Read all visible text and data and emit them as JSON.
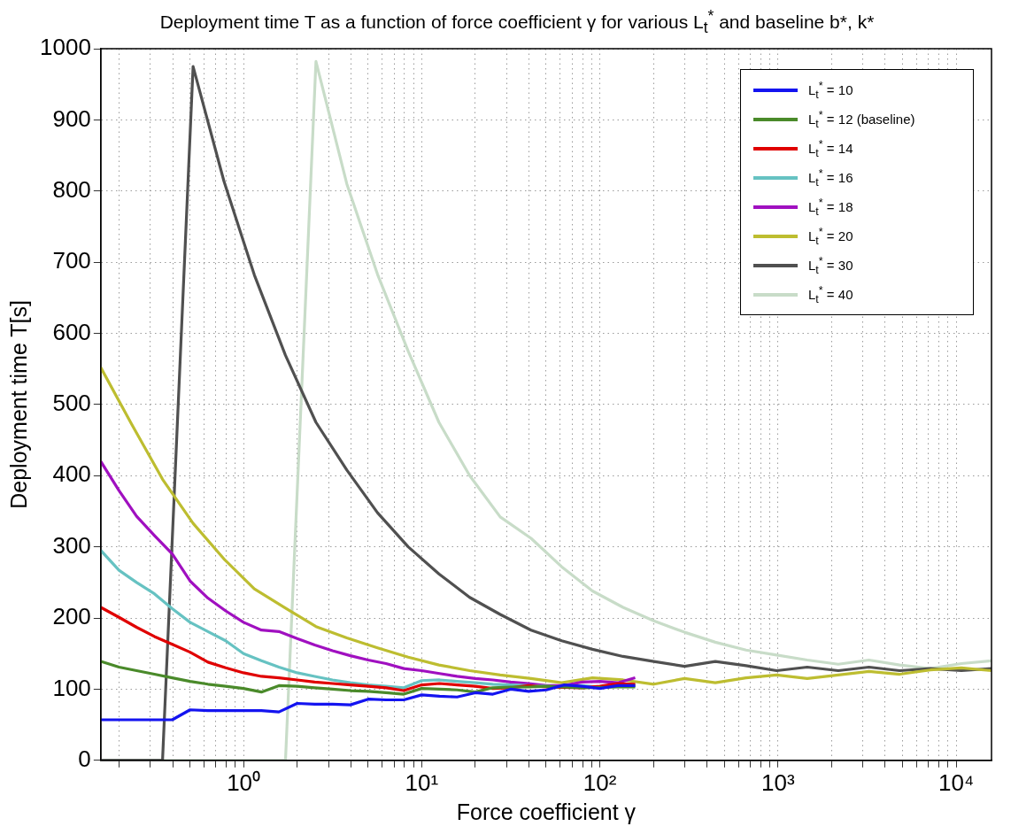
{
  "chart_data": {
    "type": "line",
    "title": "Deployment time T as a function of force coefficient γ for various L$_{t}$$^{*}$ and baseline b*, k*",
    "xlabel": "Force coefficient γ",
    "ylabel": "Deployment time T[s]",
    "log": "x",
    "grid": true,
    "legend": "top right",
    "xlim": [
      0.158,
      15800
    ],
    "ylim": [
      0,
      1000
    ],
    "yticks": [
      0,
      100,
      200,
      300,
      400,
      500,
      600,
      700,
      800,
      900,
      1000
    ],
    "xticks": [
      {
        "value": 0.2,
        "label": null
      },
      {
        "value": 0.3,
        "label": null
      },
      {
        "value": 0.4,
        "label": null
      },
      {
        "value": 0.5,
        "label": null
      },
      {
        "value": 0.6,
        "label": null
      },
      {
        "value": 0.7,
        "label": null
      },
      {
        "value": 0.8,
        "label": null
      },
      {
        "value": 0.9,
        "label": null
      },
      {
        "value": 1,
        "label": "10⁰"
      },
      {
        "value": 2,
        "label": null
      },
      {
        "value": 3,
        "label": null
      },
      {
        "value": 4,
        "label": null
      },
      {
        "value": 5,
        "label": null
      },
      {
        "value": 6,
        "label": null
      },
      {
        "value": 7,
        "label": null
      },
      {
        "value": 8,
        "label": null
      },
      {
        "value": 9,
        "label": null
      },
      {
        "value": 10,
        "label": "10¹"
      },
      {
        "value": 20,
        "label": null
      },
      {
        "value": 30,
        "label": null
      },
      {
        "value": 40,
        "label": null
      },
      {
        "value": 50,
        "label": null
      },
      {
        "value": 60,
        "label": null
      },
      {
        "value": 70,
        "label": null
      },
      {
        "value": 80,
        "label": null
      },
      {
        "value": 90,
        "label": null
      },
      {
        "value": 100,
        "label": "10²"
      },
      {
        "value": 200,
        "label": null
      },
      {
        "value": 300,
        "label": null
      },
      {
        "value": 400,
        "label": null
      },
      {
        "value": 500,
        "label": null
      },
      {
        "value": 600,
        "label": null
      },
      {
        "value": 700,
        "label": null
      },
      {
        "value": 800,
        "label": null
      },
      {
        "value": 900,
        "label": null
      },
      {
        "value": 1000,
        "label": "10³"
      },
      {
        "value": 2000,
        "label": null
      },
      {
        "value": 3000,
        "label": null
      },
      {
        "value": 4000,
        "label": null
      },
      {
        "value": 5000,
        "label": null
      },
      {
        "value": 6000,
        "label": null
      },
      {
        "value": 7000,
        "label": null
      },
      {
        "value": 8000,
        "label": null
      },
      {
        "value": 9000,
        "label": null
      },
      {
        "value": 10000,
        "label": "10⁴"
      }
    ],
    "series": [
      {
        "name": "L$_{t}$$^{*}$ = 10",
        "color": "#1414f0",
        "x": [
          0.158,
          0.2,
          0.251,
          0.316,
          0.398,
          0.501,
          0.631,
          0.794,
          1,
          1.26,
          1.58,
          2,
          2.51,
          3.16,
          3.98,
          5.01,
          6.31,
          7.94,
          10,
          12.6,
          15.8,
          20,
          25.1,
          31.6,
          39.8,
          50.1,
          63.1,
          79.4,
          100,
          126,
          158
        ],
        "values": [
          57,
          57,
          57,
          57,
          57,
          71,
          70,
          70,
          70,
          70,
          68,
          80,
          79,
          79,
          78,
          86,
          85,
          85,
          92,
          90,
          89,
          95,
          93,
          100,
          97,
          99,
          106,
          104,
          101,
          105,
          105
        ]
      },
      {
        "name": "L$_{t}$$^{*}$ = 12 (baseline)",
        "color": "#4a8a2a",
        "x": [
          0.158,
          0.2,
          0.251,
          0.316,
          0.398,
          0.501,
          0.631,
          0.794,
          1,
          1.26,
          1.58,
          2,
          2.51,
          3.16,
          3.98,
          5.01,
          6.31,
          7.94,
          10,
          12.6,
          15.8,
          20,
          25.1,
          31.6,
          39.8,
          50.1,
          63.1,
          79.4,
          100,
          126,
          158
        ],
        "values": [
          139,
          131,
          126,
          121,
          116,
          111,
          107,
          104,
          101,
          96,
          105,
          104,
          102,
          100,
          98,
          97,
          95,
          93,
          101,
          100,
          99,
          96,
          102,
          103,
          103,
          104,
          103,
          102,
          null,
          103,
          103
        ]
      },
      {
        "name": "L$_{t}$$^{*}$ = 14",
        "color": "#e00000",
        "x": [
          0.158,
          0.2,
          0.251,
          0.316,
          0.398,
          0.501,
          0.631,
          0.794,
          1,
          1.26,
          1.58,
          2,
          2.51,
          3.16,
          3.98,
          5.01,
          6.31,
          7.94,
          10,
          12.6,
          15.8,
          20,
          25.1,
          31.6,
          39.8,
          50.1,
          63.1,
          79.4,
          100,
          126,
          158
        ],
        "values": [
          215,
          201,
          187,
          174,
          163,
          152,
          138,
          130,
          123,
          118,
          116,
          113,
          110,
          108,
          106,
          104,
          102,
          98,
          106,
          108,
          106,
          104,
          101,
          102,
          105,
          103,
          null,
          102,
          104,
          108,
          107
        ]
      },
      {
        "name": "L$_{t}$$^{*}$ = 16",
        "color": "#66c2c2",
        "x": [
          0.158,
          0.2,
          0.251,
          0.316,
          0.398,
          0.501,
          0.631,
          0.794,
          1,
          1.26,
          1.58,
          2,
          2.51,
          3.16,
          3.98,
          5.01,
          6.31,
          7.94,
          10,
          12.6,
          15.8,
          20,
          25.1,
          31.6,
          39.8,
          50.1,
          63.1,
          79.4,
          100,
          126,
          158
        ],
        "values": [
          295,
          267,
          250,
          234,
          213,
          194,
          181,
          168,
          150,
          140,
          131,
          123,
          118,
          113,
          109,
          106,
          104,
          102,
          112,
          113,
          111,
          109,
          107,
          106,
          105,
          104,
          103,
          105,
          103,
          104,
          105
        ]
      },
      {
        "name": "L$_{t}$$^{*}$ = 18",
        "color": "#a010c0",
        "x": [
          0.158,
          0.2,
          0.251,
          0.316,
          0.398,
          0.501,
          0.631,
          0.794,
          1,
          1.26,
          1.58,
          2,
          2.51,
          3.16,
          3.98,
          5.01,
          6.31,
          7.94,
          10,
          12.6,
          15.8,
          20,
          25.1,
          31.6,
          39.8,
          50.1,
          63.1,
          79.4,
          100,
          126,
          158
        ],
        "values": [
          420,
          379,
          343,
          316,
          290,
          252,
          228,
          210,
          194,
          183,
          181,
          171,
          162,
          154,
          147,
          141,
          136,
          129,
          126,
          122,
          118,
          115,
          113,
          110,
          108,
          105,
          105,
          110,
          111,
          109,
          116
        ]
      },
      {
        "name": "L$_{t}$$^{*}$ = 20",
        "color": "#bdbd30",
        "x": [
          0.158,
          0.236,
          0.351,
          0.521,
          0.776,
          1.15,
          1.72,
          2.55,
          3.8,
          5.65,
          8.4,
          12.5,
          18.6,
          27.6,
          41.1,
          61.1,
          90.9,
          135,
          201,
          299,
          445,
          662,
          984,
          1460,
          2180,
          3240,
          4820,
          7170,
          10700,
          15800
        ],
        "values": [
          552,
          472,
          395,
          333,
          283,
          241,
          214,
          188,
          172,
          158,
          145,
          134,
          126,
          120,
          115,
          109,
          116,
          113,
          107,
          115,
          109,
          116,
          120,
          115,
          120,
          125,
          121,
          127,
          130,
          126
        ]
      },
      {
        "name": "L$_{t}$$^{*}$ = 30",
        "color": "#505050",
        "x": [
          0.158,
          0.236,
          0.351,
          0.521,
          0.776,
          1.15,
          1.72,
          2.55,
          3.8,
          5.65,
          8.4,
          12.5,
          18.6,
          27.6,
          41.1,
          61.1,
          90.9,
          135,
          201,
          299,
          445,
          662,
          984,
          1460,
          2180,
          3240,
          4820,
          7170,
          10700,
          15800
        ],
        "values": [
          0,
          0,
          0,
          975,
          814,
          682,
          569,
          475,
          408,
          348,
          300,
          262,
          229,
          205,
          183,
          168,
          156,
          146,
          139,
          132,
          139,
          133,
          126,
          131,
          126,
          131,
          126,
          129,
          126,
          129
        ]
      },
      {
        "name": "L$_{t}$$^{*}$ = 40",
        "color": "#c8dcc8",
        "x": [
          0.158,
          0.236,
          0.351,
          0.521,
          0.776,
          1.15,
          1.72,
          2.55,
          3.8,
          5.65,
          8.4,
          12.5,
          18.6,
          27.6,
          41.1,
          61.1,
          90.9,
          135,
          201,
          299,
          445,
          662,
          984,
          1460,
          2180,
          3240,
          4820,
          7170,
          10700,
          15800
        ],
        "values": [
          0,
          0,
          0,
          0,
          0,
          0,
          0,
          982,
          810,
          683,
          575,
          475,
          400,
          342,
          312,
          272,
          238,
          215,
          196,
          180,
          166,
          155,
          148,
          141,
          135,
          141,
          134,
          129,
          136,
          140
        ]
      }
    ]
  }
}
